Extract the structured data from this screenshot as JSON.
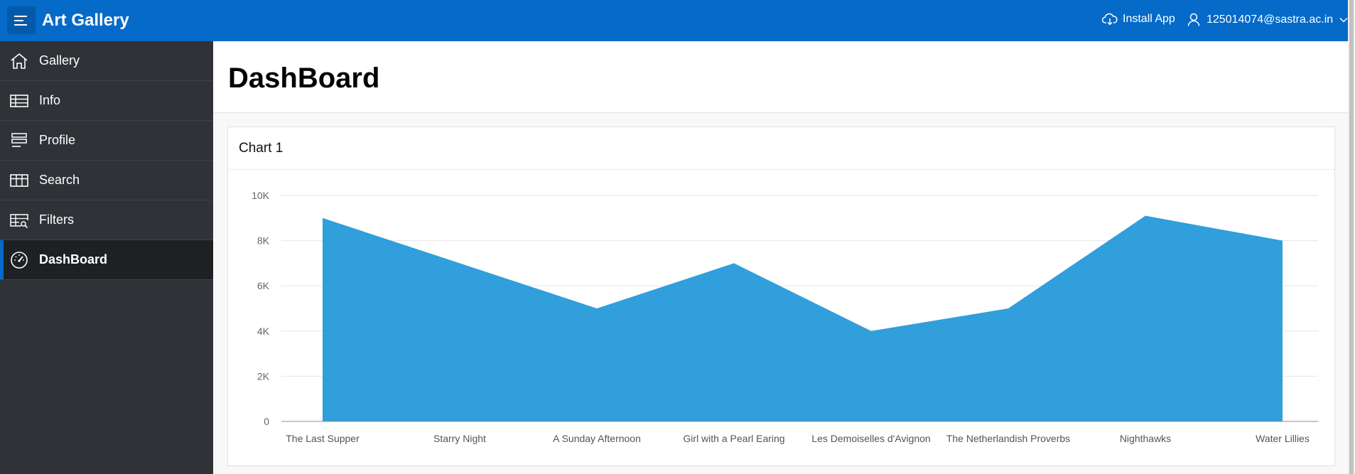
{
  "header": {
    "app_title": "Art Gallery",
    "install_label": "Install App",
    "user_label": "125014074@sastra.ac.in",
    "bg_color": "#056ac8"
  },
  "sidebar": {
    "items": [
      {
        "label": "Gallery",
        "icon": "home-icon"
      },
      {
        "label": "Info",
        "icon": "table-icon"
      },
      {
        "label": "Profile",
        "icon": "form-icon"
      },
      {
        "label": "Search",
        "icon": "grid-icon"
      },
      {
        "label": "Filters",
        "icon": "filter-table-icon"
      },
      {
        "label": "DashBoard",
        "icon": "dashboard-icon",
        "active": true
      }
    ]
  },
  "main": {
    "page_title": "DashBoard",
    "card_title": "Chart 1"
  },
  "chart_data": {
    "type": "area",
    "categories": [
      "The Last Supper",
      "Starry Night",
      "A Sunday Afternoon",
      "Girl with a Pearl Earing",
      "Les Demoiselles d'Avignon",
      "The Netherlandish Proverbs",
      "Nighthawks",
      "Water Lillies"
    ],
    "series": [
      {
        "values": [
          9000,
          7000,
          5000,
          7000,
          4000,
          5000,
          9100,
          8000
        ],
        "color": "#309fdb"
      }
    ],
    "ylim": [
      0,
      10000
    ],
    "yticks": [
      {
        "value": 0,
        "label": "0"
      },
      {
        "value": 2000,
        "label": "2K"
      },
      {
        "value": 4000,
        "label": "4K"
      },
      {
        "value": 6000,
        "label": "6K"
      },
      {
        "value": 8000,
        "label": "8K"
      },
      {
        "value": 10000,
        "label": "10K"
      }
    ],
    "grid": true,
    "legend": "none"
  }
}
